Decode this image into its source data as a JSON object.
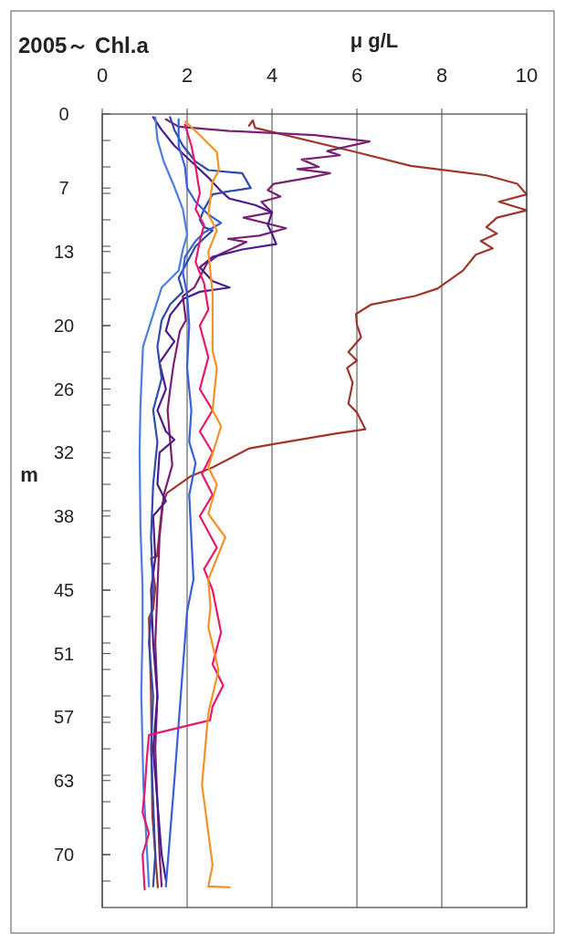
{
  "chart_data": {
    "type": "line",
    "title": "2005～ Chl.a",
    "xlabel": "μ g/L",
    "ylabel": "m",
    "xlim": [
      0,
      10
    ],
    "xticks": [
      0,
      2,
      4,
      6,
      8,
      10
    ],
    "ylim": [
      75,
      0
    ],
    "yticks": [
      0,
      7,
      13,
      20,
      26,
      32,
      38,
      45,
      51,
      57,
      63,
      70,
      {
        "value": 2.5,
        "label": null
      },
      {
        "value": 5,
        "label": null
      },
      {
        "value": 7.5,
        "label": null
      },
      {
        "value": 10,
        "label": null
      },
      {
        "value": 12.5,
        "label": null
      },
      {
        "value": 15,
        "label": null
      },
      {
        "value": 17.5,
        "label": null
      },
      {
        "value": 20,
        "label": null
      },
      {
        "value": 22.5,
        "label": null
      },
      {
        "value": 25,
        "label": null
      },
      {
        "value": 27.5,
        "label": null
      },
      {
        "value": 30,
        "label": null
      },
      {
        "value": 32.5,
        "label": null
      },
      {
        "value": 35,
        "label": null
      },
      {
        "value": 37.5,
        "label": null
      },
      {
        "value": 40,
        "label": null
      },
      {
        "value": 42.5,
        "label": null
      },
      {
        "value": 45,
        "label": null
      },
      {
        "value": 47.5,
        "label": null
      },
      {
        "value": 50,
        "label": null
      },
      {
        "value": 52.5,
        "label": null
      },
      {
        "value": 55,
        "label": null
      },
      {
        "value": 57.5,
        "label": null
      },
      {
        "value": 60,
        "label": null
      },
      {
        "value": 62.5,
        "label": null
      },
      {
        "value": 65,
        "label": null
      },
      {
        "value": 67.5,
        "label": null
      },
      {
        "value": 70,
        "label": null
      },
      {
        "value": 72.5,
        "label": null
      }
    ],
    "grid": "x",
    "marker": "none",
    "line_style": "solid",
    "series": [
      {
        "color": "#a0352a",
        "x": [
          3.46,
          3.55,
          3.6,
          5.98,
          7.27,
          9.05,
          9.78,
          10.0,
          9.35,
          10.0,
          9.3,
          9.05,
          9.3,
          8.92,
          9.2,
          8.8,
          8.5,
          7.9,
          7.37,
          6.34,
          5.98,
          6.0,
          6.1,
          5.8,
          6.0,
          5.77,
          5.9,
          5.8,
          6.0,
          6.2,
          5.5,
          4.04,
          3.47,
          2.6,
          2.1,
          1.53,
          1.42,
          1.37,
          1.29,
          1.15,
          1.25,
          1.2,
          1.1,
          1.15,
          1.18,
          1.31
        ],
        "values": [
          1.1,
          0.6,
          1.3,
          3.6,
          4.9,
          5.8,
          6.6,
          7.6,
          8.3,
          9.1,
          9.8,
          10.7,
          11.3,
          12.0,
          12.7,
          13.3,
          14.8,
          16.5,
          17.2,
          18.0,
          18.9,
          19.9,
          21.1,
          22.5,
          23.3,
          24.0,
          25.4,
          27.4,
          28.2,
          29.8,
          30.2,
          31.2,
          31.6,
          33.4,
          34.2,
          35.8,
          36.8,
          38.6,
          41.8,
          42.0,
          44.8,
          46.8,
          47.6,
          54.7,
          66.2,
          73.1
        ]
      },
      {
        "color": "#7b2070",
        "x": [
          1.5,
          1.8,
          3.0,
          5.0,
          6.3,
          5.3,
          5.6,
          4.7,
          5.1,
          4.6,
          5.37,
          4.9,
          4.04,
          3.9,
          4.2,
          3.75,
          4.0,
          3.33,
          4.33,
          3.7,
          2.97,
          3.4,
          2.75,
          2.47,
          2.17,
          1.9,
          1.97,
          1.83,
          1.68,
          1.6,
          1.54,
          1.6,
          1.65,
          1.45,
          1.35,
          1.3,
          1.25,
          1.3,
          1.25,
          1.3,
          1.35,
          1.4
        ],
        "values": [
          0.5,
          1.2,
          1.6,
          2.0,
          2.6,
          3.5,
          3.9,
          4.3,
          5.0,
          5.2,
          5.6,
          6.0,
          6.6,
          7.2,
          7.8,
          8.3,
          9.3,
          9.8,
          10.8,
          11.5,
          11.8,
          12.1,
          13.3,
          14.1,
          16.4,
          17.2,
          19.5,
          20.5,
          23.7,
          26.0,
          28.0,
          30.9,
          33.2,
          36.0,
          40,
          45,
          50,
          55,
          60,
          65,
          70,
          73.0
        ]
      },
      {
        "color": "#4b1a8c",
        "x": [
          1.2,
          1.4,
          1.7,
          2.1,
          2.5,
          2.8,
          3.0,
          3.6,
          4.0,
          3.9,
          4.0,
          4.1,
          3.3,
          2.6,
          2.3,
          2.6,
          3.0,
          2.3,
          1.9,
          1.6,
          1.5,
          1.7,
          1.35,
          1.5,
          1.3,
          1.5,
          1.7,
          1.35,
          1.3,
          1.5,
          1.2,
          1.25,
          1.15,
          1.2,
          1.3,
          1.2,
          1.3,
          1.4,
          1.5
        ],
        "values": [
          0.3,
          1.5,
          3.0,
          4.5,
          6.0,
          7.3,
          8.0,
          8.6,
          9.3,
          10.5,
          11.3,
          12.3,
          12.8,
          13.5,
          14.5,
          15.8,
          16.4,
          16.8,
          17.5,
          19.0,
          20.5,
          21.5,
          23.5,
          26,
          28,
          30,
          30.8,
          32,
          35,
          36.6,
          38,
          42,
          45,
          50,
          55,
          60,
          65,
          70,
          72.4
        ]
      },
      {
        "color": "#2f4aa8",
        "x": [
          1.6,
          1.7,
          1.9,
          2.2,
          2.5,
          3.3,
          3.4,
          3.5,
          3.0,
          2.6,
          2.4,
          2.3,
          2.4,
          2.6,
          2.2,
          2.0,
          1.8,
          1.9,
          1.6,
          1.4,
          1.3,
          1.4,
          1.2,
          1.3,
          1.2,
          1.15,
          1.2,
          1.1,
          1.2,
          1.15,
          1.2,
          1.25,
          1.2
        ],
        "values": [
          0.3,
          1.5,
          3.0,
          4.5,
          5.3,
          5.6,
          6.3,
          7.0,
          7.3,
          7.6,
          9,
          10,
          10.7,
          11.0,
          12.5,
          14,
          15.5,
          16.8,
          18,
          19.5,
          22,
          25,
          28,
          31,
          35,
          40,
          45,
          50,
          55,
          60,
          65,
          70,
          73
        ]
      },
      {
        "color": "#3560d8",
        "x": [
          1.8,
          1.8,
          1.95,
          2.0,
          2.2,
          2.5,
          2.8,
          2.4,
          2.2,
          1.95,
          1.9,
          2.0,
          2.05,
          2.0,
          2.1,
          2.05,
          2.2,
          2.05,
          2.1,
          2.15,
          2.0,
          1.85,
          1.7,
          1.5
        ],
        "values": [
          0.5,
          3,
          5,
          7,
          8.3,
          9.5,
          10.3,
          11.2,
          12,
          13.5,
          15,
          17,
          20,
          24,
          28,
          31,
          33,
          36,
          40,
          44,
          47,
          55,
          63,
          73
        ]
      },
      {
        "color": "#4a7fdf",
        "x": [
          1.25,
          1.3,
          1.45,
          1.68,
          1.9,
          2.0,
          1.9,
          1.8,
          1.4,
          0.96,
          0.9,
          0.88,
          0.9,
          0.95,
          0.95,
          0.92,
          0.97,
          1.1
        ],
        "values": [
          0.3,
          2.4,
          4.5,
          6.7,
          9,
          11.4,
          12.8,
          14.8,
          16.4,
          22,
          27.6,
          31.9,
          39,
          44.7,
          49,
          54.7,
          63.4,
          73
        ]
      },
      {
        "color": "#e8186a",
        "x": [
          1.95,
          2.1,
          2.2,
          2.3,
          2.2,
          2.4,
          2.3,
          2.2,
          2.4,
          2.5,
          2.3,
          2.5,
          2.3,
          2.6,
          2.3,
          2.6,
          2.35,
          2.6,
          2.3,
          2.7,
          2.4,
          2.6,
          2.7,
          2.8,
          2.6,
          2.85,
          2.6,
          2.54,
          1.1,
          1.05,
          1.0,
          0.95,
          1.1,
          0.95,
          1.0
        ],
        "values": [
          1.0,
          3,
          5,
          7.5,
          9,
          10.5,
          12,
          14,
          16,
          18.5,
          20,
          23,
          26,
          28,
          30,
          32,
          34,
          36,
          38,
          41,
          43,
          45,
          47,
          49,
          52,
          54,
          56,
          57.3,
          58.7,
          61,
          64,
          66,
          68,
          70,
          73.3
        ]
      },
      {
        "color": "#f39226",
        "x": [
          1.96,
          2.3,
          2.7,
          2.75,
          2.6,
          2.5,
          2.7,
          2.5,
          2.6,
          2.6,
          2.7,
          2.6,
          2.8,
          2.5,
          2.7,
          2.5,
          2.9,
          2.5,
          2.55,
          2.5,
          2.74,
          2.5,
          2.35,
          2.6,
          2.5,
          3.0
        ],
        "values": [
          0.7,
          2.0,
          3.6,
          5.3,
          6.4,
          9.5,
          11,
          13,
          17,
          22.4,
          24,
          28,
          29.5,
          33.4,
          35,
          37.8,
          40,
          44,
          46.6,
          48.5,
          52.6,
          56.6,
          63.4,
          71,
          73,
          73.1
        ]
      }
    ]
  }
}
